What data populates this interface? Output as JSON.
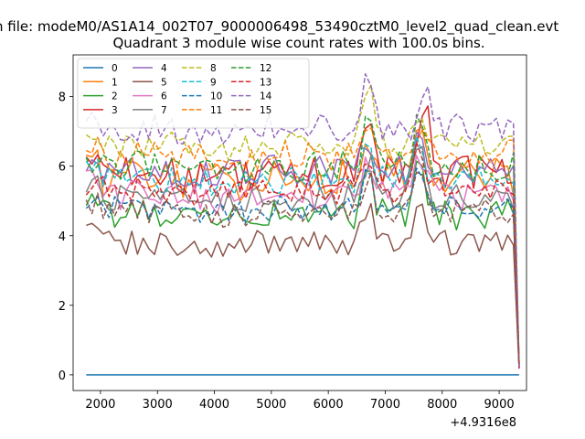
{
  "header_text": "n file: modeM0/AS1A14_002T07_9000006498_53490cztM0_level2_quad_clean.evt",
  "chart_data": {
    "type": "line",
    "title": "Quadrant 3 module wise count rates with 100.0s bins.",
    "xlabel": "",
    "ylabel": "",
    "x_offset_label": "+4.9316e8",
    "xlim": [
      1520,
      9480
    ],
    "ylim": [
      -0.45,
      9.2
    ],
    "xticks": [
      2000,
      3000,
      4000,
      5000,
      6000,
      7000,
      8000,
      9000
    ],
    "yticks": [
      0,
      2,
      4,
      6,
      8
    ],
    "x_start": 1750,
    "x_step": 100,
    "n_points": 77,
    "legend_position": "top-left",
    "series": [
      {
        "name": "0",
        "color": "#1f77b4",
        "dash": "solid",
        "base": 0.0,
        "amp": 0.0,
        "peaks": []
      },
      {
        "name": "1",
        "color": "#ff7f0e",
        "dash": "solid",
        "base": 5.7,
        "amp": 0.55,
        "peaks": [
          [
            6700,
            1.2
          ],
          [
            7600,
            1.5
          ]
        ]
      },
      {
        "name": "2",
        "color": "#2ca02c",
        "dash": "solid",
        "base": 4.6,
        "amp": 0.45,
        "peaks": [
          [
            6700,
            1.0
          ],
          [
            7600,
            1.4
          ]
        ]
      },
      {
        "name": "3",
        "color": "#d62728",
        "dash": "solid",
        "base": 5.8,
        "amp": 0.5,
        "peaks": [
          [
            6700,
            1.4
          ],
          [
            7700,
            2.1
          ]
        ]
      },
      {
        "name": "4",
        "color": "#9467bd",
        "dash": "solid",
        "base": 5.9,
        "amp": 0.45,
        "peaks": [
          [
            6700,
            0.8
          ],
          [
            7600,
            1.1
          ]
        ]
      },
      {
        "name": "5",
        "color": "#8c564b",
        "dash": "solid",
        "base": 3.8,
        "amp": 0.35,
        "peaks": [
          [
            6700,
            0.9
          ],
          [
            7600,
            1.3
          ]
        ]
      },
      {
        "name": "6",
        "color": "#e377c2",
        "dash": "solid",
        "base": 5.2,
        "amp": 0.45,
        "peaks": [
          [
            6700,
            1.0
          ],
          [
            7600,
            1.3
          ]
        ]
      },
      {
        "name": "7",
        "color": "#7f7f7f",
        "dash": "solid",
        "base": 5.1,
        "amp": 0.4,
        "peaks": [
          [
            6700,
            1.0
          ],
          [
            7600,
            1.6
          ]
        ]
      },
      {
        "name": "8",
        "color": "#bcbd22",
        "dash": "dashed",
        "base": 6.6,
        "amp": 0.4,
        "peaks": [
          [
            6700,
            1.6
          ],
          [
            7600,
            1.2
          ]
        ]
      },
      {
        "name": "9",
        "color": "#17becf",
        "dash": "dashed",
        "base": 5.6,
        "amp": 0.4,
        "peaks": [
          [
            6700,
            1.0
          ],
          [
            7600,
            1.2
          ]
        ]
      },
      {
        "name": "10",
        "color": "#1f77b4",
        "dash": "dashed",
        "base": 4.8,
        "amp": 0.35,
        "peaks": [
          [
            6700,
            0.9
          ],
          [
            7600,
            1.2
          ]
        ]
      },
      {
        "name": "11",
        "color": "#ff7f0e",
        "dash": "dashed",
        "base": 6.3,
        "amp": 0.45,
        "peaks": [
          [
            6700,
            1.0
          ],
          [
            7600,
            1.2
          ]
        ]
      },
      {
        "name": "12",
        "color": "#2ca02c",
        "dash": "dashed",
        "base": 6.0,
        "amp": 0.45,
        "peaks": [
          [
            6700,
            1.8
          ],
          [
            7600,
            1.3
          ]
        ]
      },
      {
        "name": "13",
        "color": "#d62728",
        "dash": "dashed",
        "base": 5.3,
        "amp": 0.4,
        "peaks": [
          [
            6700,
            1.0
          ],
          [
            7600,
            1.3
          ]
        ]
      },
      {
        "name": "14",
        "color": "#9467bd",
        "dash": "dashed",
        "base": 7.1,
        "amp": 0.4,
        "peaks": [
          [
            6700,
            1.7
          ],
          [
            7700,
            1.3
          ]
        ]
      },
      {
        "name": "15",
        "color": "#8c564b",
        "dash": "dashed",
        "base": 4.7,
        "amp": 0.35,
        "peaks": [
          [
            6700,
            1.0
          ],
          [
            7600,
            1.2
          ]
        ]
      }
    ],
    "final_drop_value": 0.15
  }
}
